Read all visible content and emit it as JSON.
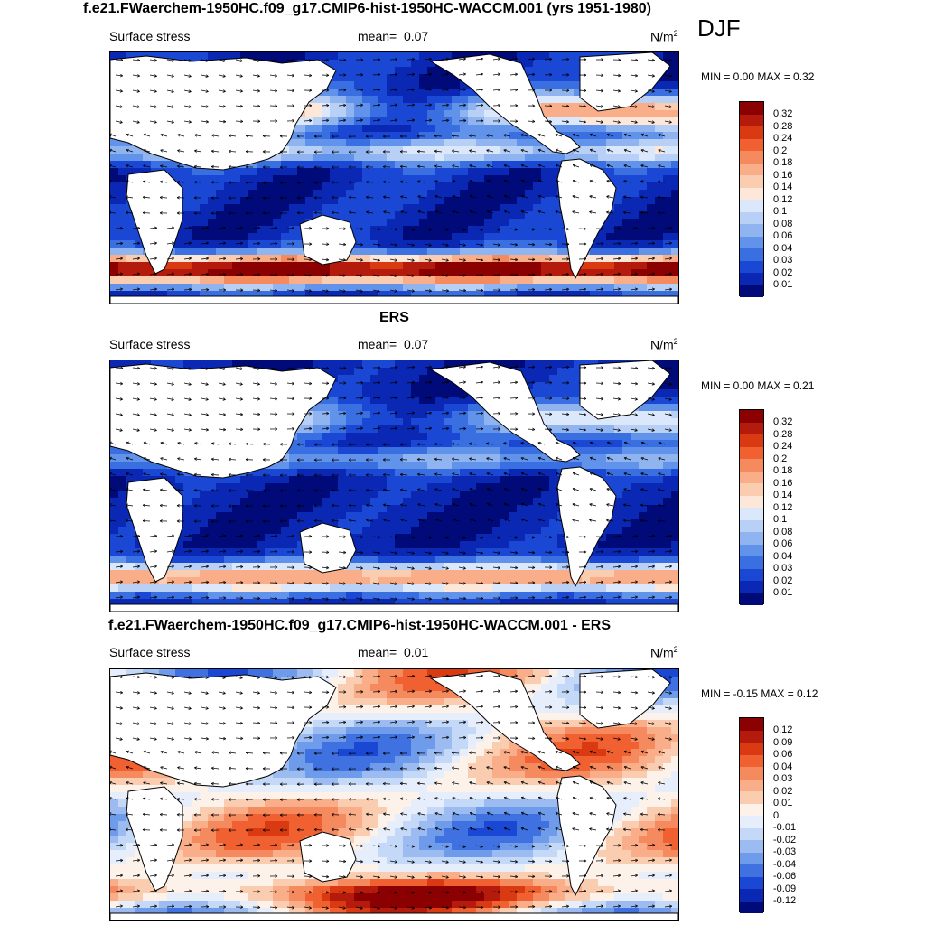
{
  "title": "f.e21.FWaerchem-1950HC.f09_g17.CMIP6-hist-1950HC-WACCM.001 (yrs 1951-1980)",
  "season": "DJF",
  "panels": [
    {
      "title": "",
      "variable": "Surface stress",
      "mean_label": "mean=",
      "mean": "0.07",
      "units": "N/m",
      "units_sup": "2",
      "minmax": "MIN =   0.00 MAX =   0.32",
      "colorbar": {
        "levels": [
          "0.32",
          "0.28",
          "0.24",
          "0.2",
          "0.18",
          "0.16",
          "0.14",
          "0.12",
          "0.1",
          "0.08",
          "0.06",
          "0.04",
          "0.03",
          "0.02",
          "0.01"
        ],
        "colors": [
          "#8b0000",
          "#b41b0c",
          "#d93a12",
          "#f06030",
          "#f58a5e",
          "#f9ad88",
          "#fbcdb0",
          "#fde7d8",
          "#dbe8fb",
          "#b8d0f6",
          "#8fb4f0",
          "#6293ea",
          "#3a6fe2",
          "#1a48d4",
          "#0a28b4",
          "#000a78"
        ]
      }
    },
    {
      "title": "ERS",
      "variable": "Surface stress",
      "mean_label": "mean=",
      "mean": "0.07",
      "units": "N/m",
      "units_sup": "2",
      "minmax": "MIN =   0.00 MAX =   0.21",
      "colorbar": {
        "levels": [
          "0.32",
          "0.28",
          "0.24",
          "0.2",
          "0.18",
          "0.16",
          "0.14",
          "0.12",
          "0.1",
          "0.08",
          "0.06",
          "0.04",
          "0.03",
          "0.02",
          "0.01"
        ],
        "colors": [
          "#8b0000",
          "#b41b0c",
          "#d93a12",
          "#f06030",
          "#f58a5e",
          "#f9ad88",
          "#fbcdb0",
          "#fde7d8",
          "#dbe8fb",
          "#b8d0f6",
          "#8fb4f0",
          "#6293ea",
          "#3a6fe2",
          "#1a48d4",
          "#0a28b4",
          "#000a78"
        ]
      }
    },
    {
      "title": "f.e21.FWaerchem-1950HC.f09_g17.CMIP6-hist-1950HC-WACCM.001 - ERS",
      "variable": "Surface stress",
      "mean_label": "mean=",
      "mean": "0.01",
      "units": "N/m",
      "units_sup": "2",
      "minmax": "MIN = -0.15 MAX =   0.12",
      "colorbar": {
        "levels": [
          "0.12",
          "0.09",
          "0.06",
          "0.04",
          "0.03",
          "0.02",
          "0.01",
          "0",
          "-0.01",
          "-0.02",
          "-0.03",
          "-0.04",
          "-0.06",
          "-0.09",
          "-0.12"
        ],
        "colors": [
          "#8b0000",
          "#b41b0c",
          "#d93a12",
          "#f06030",
          "#f58a5e",
          "#f9ad88",
          "#fbcdb0",
          "#fdf2ea",
          "#e6eefc",
          "#c4d8f7",
          "#9cbcf1",
          "#6f9beb",
          "#3f72e0",
          "#1a48d4",
          "#0a28b4",
          "#000a78"
        ]
      }
    }
  ]
}
